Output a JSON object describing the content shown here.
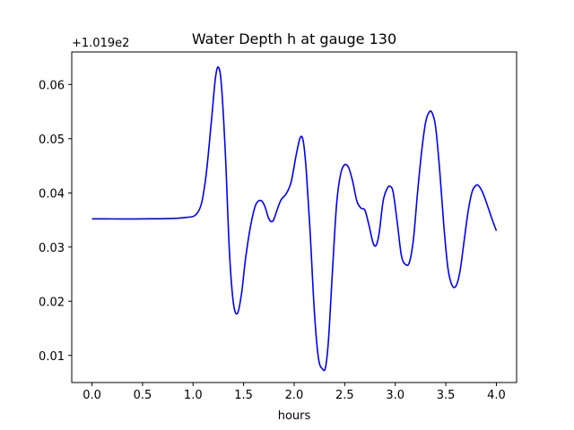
{
  "chart_data": {
    "type": "line",
    "title": "Water Depth h at gauge 130",
    "xlabel": "hours",
    "ylabel": "",
    "y_offset_label": "+1.019e2",
    "xlim": [
      -0.2,
      4.2
    ],
    "ylim": [
      0.005,
      0.066
    ],
    "xticks": [
      0.0,
      0.5,
      1.0,
      1.5,
      2.0,
      2.5,
      3.0,
      3.5,
      4.0
    ],
    "xtick_labels": [
      "0.0",
      "0.5",
      "1.0",
      "1.5",
      "2.0",
      "2.5",
      "3.0",
      "3.5",
      "4.0"
    ],
    "yticks": [
      0.01,
      0.02,
      0.03,
      0.04,
      0.05,
      0.06
    ],
    "ytick_labels": [
      "0.01",
      "0.02",
      "0.03",
      "0.04",
      "0.05",
      "0.06"
    ],
    "grid": false,
    "series": [
      {
        "color": "#0000ff",
        "x": [
          0.0,
          0.5,
          0.9,
          1.05,
          1.12,
          1.18,
          1.22,
          1.25,
          1.28,
          1.32,
          1.36,
          1.4,
          1.44,
          1.48,
          1.52,
          1.57,
          1.62,
          1.67,
          1.71,
          1.75,
          1.79,
          1.83,
          1.87,
          1.92,
          1.97,
          2.02,
          2.06,
          2.09,
          2.12,
          2.16,
          2.2,
          2.24,
          2.28,
          2.31,
          2.34,
          2.38,
          2.42,
          2.46,
          2.5,
          2.54,
          2.58,
          2.62,
          2.66,
          2.7,
          2.74,
          2.78,
          2.81,
          2.84,
          2.88,
          2.92,
          2.95,
          2.98,
          3.02,
          3.06,
          3.1,
          3.14,
          3.18,
          3.22,
          3.26,
          3.3,
          3.34,
          3.37,
          3.4,
          3.44,
          3.48,
          3.52,
          3.56,
          3.6,
          3.64,
          3.68,
          3.72,
          3.76,
          3.8,
          3.83,
          3.87,
          3.92,
          3.96,
          4.0
        ],
        "y": [
          0.0352,
          0.0352,
          0.0354,
          0.0365,
          0.042,
          0.053,
          0.061,
          0.0632,
          0.06,
          0.047,
          0.029,
          0.0195,
          0.0178,
          0.0215,
          0.028,
          0.034,
          0.0378,
          0.0386,
          0.0375,
          0.0352,
          0.0348,
          0.0368,
          0.0387,
          0.0398,
          0.042,
          0.047,
          0.0502,
          0.0495,
          0.044,
          0.032,
          0.018,
          0.0095,
          0.0075,
          0.0078,
          0.013,
          0.026,
          0.038,
          0.0435,
          0.0452,
          0.0446,
          0.042,
          0.0385,
          0.0372,
          0.0368,
          0.034,
          0.0308,
          0.0303,
          0.0325,
          0.0385,
          0.0408,
          0.0412,
          0.04,
          0.0345,
          0.0285,
          0.0268,
          0.0272,
          0.0315,
          0.04,
          0.0475,
          0.053,
          0.055,
          0.0545,
          0.052,
          0.044,
          0.034,
          0.0262,
          0.023,
          0.0228,
          0.0255,
          0.031,
          0.0365,
          0.0402,
          0.0414,
          0.0412,
          0.0398,
          0.0372,
          0.035,
          0.033
        ]
      }
    ]
  }
}
